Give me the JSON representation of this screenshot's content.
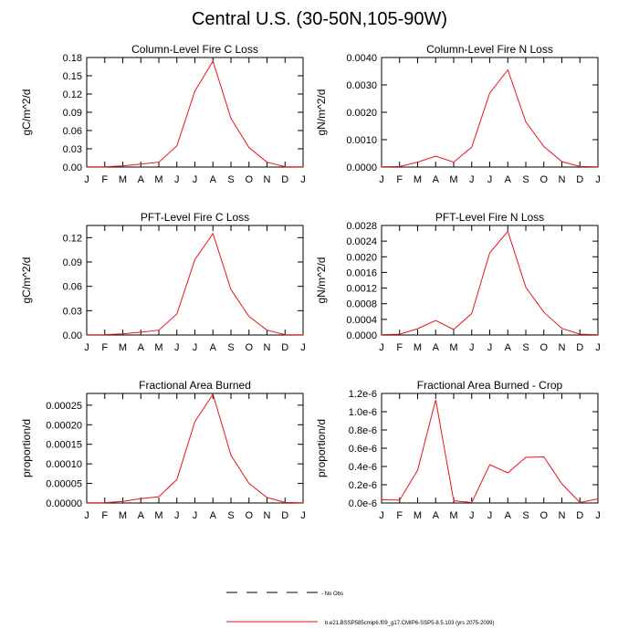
{
  "title": "Central U.S. (30-50N,105-90W)",
  "months": [
    "J",
    "F",
    "M",
    "A",
    "M",
    "J",
    "J",
    "A",
    "S",
    "O",
    "N",
    "D",
    "J"
  ],
  "colors": {
    "model": "#e8141a",
    "axis": "#000000"
  },
  "legend": {
    "obs_label": "- No Obs",
    "model_label": "b.e21.BSSP585cmip6.f09_g17.CMIP6-SSP5-8.5.103 (yrs 2075-2099)"
  },
  "chart_data": [
    {
      "type": "line",
      "title": "Column-Level Fire C Loss",
      "ylabel": "gC/m^2/d",
      "ylim": [
        0,
        0.18
      ],
      "yticks": [
        0,
        0.03,
        0.06,
        0.09,
        0.12,
        0.15,
        0.18
      ],
      "ytick_labels": [
        "0.00",
        "0.03",
        "0.06",
        "0.09",
        "0.12",
        "0.15",
        "0.18"
      ],
      "x": [
        "J",
        "F",
        "M",
        "A",
        "M",
        "J",
        "J",
        "A",
        "S",
        "O",
        "N",
        "D",
        "J"
      ],
      "series": [
        {
          "name": "b.e21.BSSP585cmip6.f09_g17.CMIP6-SSP5-8.5.103 (yrs 2075-2099)",
          "values": [
            0.0004,
            0.0005,
            0.002,
            0.005,
            0.008,
            0.035,
            0.125,
            0.174,
            0.08,
            0.032,
            0.008,
            0.0006,
            0.0004
          ]
        }
      ]
    },
    {
      "type": "line",
      "title": "Column-Level Fire N Loss",
      "ylabel": "gN/m^2/d",
      "ylim": [
        0,
        0.004
      ],
      "yticks": [
        0,
        0.001,
        0.002,
        0.003,
        0.004
      ],
      "ytick_labels": [
        "0.0000",
        "0.0010",
        "0.0020",
        "0.0030",
        "0.0040"
      ],
      "x": [
        "J",
        "F",
        "M",
        "A",
        "M",
        "J",
        "J",
        "A",
        "S",
        "O",
        "N",
        "D",
        "J"
      ],
      "series": [
        {
          "name": "b.e21.BSSP585cmip6.f09_g17.CMIP6-SSP5-8.5.103 (yrs 2075-2099)",
          "values": [
            1e-05,
            2e-05,
            0.00018,
            0.0004,
            0.00018,
            0.00073,
            0.0027,
            0.00355,
            0.00165,
            0.00075,
            0.0002,
            2e-05,
            1e-05
          ]
        }
      ]
    },
    {
      "type": "line",
      "title": "PFT-Level Fire C Loss",
      "ylabel": "gC/m^2/d",
      "ylim": [
        0,
        0.135
      ],
      "yticks": [
        0,
        0.03,
        0.06,
        0.09,
        0.12
      ],
      "ytick_labels": [
        "0.00",
        "0.03",
        "0.06",
        "0.09",
        "0.12"
      ],
      "x": [
        "J",
        "F",
        "M",
        "A",
        "M",
        "J",
        "J",
        "A",
        "S",
        "O",
        "N",
        "D",
        "J"
      ],
      "series": [
        {
          "name": "b.e21.BSSP585cmip6.f09_g17.CMIP6-SSP5-8.5.103 (yrs 2075-2099)",
          "values": [
            0.0003,
            0.0004,
            0.0015,
            0.0035,
            0.006,
            0.026,
            0.093,
            0.125,
            0.056,
            0.023,
            0.006,
            0.0005,
            0.0003
          ]
        }
      ]
    },
    {
      "type": "line",
      "title": "PFT-Level Fire N Loss",
      "ylabel": "gN/m^2/d",
      "ylim": [
        0,
        0.0028
      ],
      "yticks": [
        0,
        0.0004,
        0.0008,
        0.0012,
        0.0016,
        0.002,
        0.0024,
        0.0028
      ],
      "ytick_labels": [
        "0.0000",
        "0.0004",
        "0.0008",
        "0.0012",
        "0.0016",
        "0.0020",
        "0.0024",
        "0.0028"
      ],
      "x": [
        "J",
        "F",
        "M",
        "A",
        "M",
        "J",
        "J",
        "A",
        "S",
        "O",
        "N",
        "D",
        "J"
      ],
      "series": [
        {
          "name": "b.e21.BSSP585cmip6.f09_g17.CMIP6-SSP5-8.5.103 (yrs 2075-2099)",
          "values": [
            1e-05,
            2e-05,
            0.00016,
            0.00037,
            0.00014,
            0.00055,
            0.0021,
            0.00265,
            0.00122,
            0.00058,
            0.00017,
            2e-05,
            1e-05
          ]
        }
      ]
    },
    {
      "type": "line",
      "title": "Fractional Area Burned",
      "ylabel": "proportion/d",
      "ylim": [
        0,
        0.00028
      ],
      "yticks": [
        0,
        5e-05,
        0.0001,
        0.00015,
        0.0002,
        0.00025
      ],
      "ytick_labels": [
        "0.00000",
        "0.00005",
        "0.00010",
        "0.00015",
        "0.00020",
        "0.00025"
      ],
      "x": [
        "J",
        "F",
        "M",
        "A",
        "M",
        "J",
        "J",
        "A",
        "S",
        "O",
        "N",
        "D",
        "J"
      ],
      "series": [
        {
          "name": "b.e21.BSSP585cmip6.f09_g17.CMIP6-SSP5-8.5.103 (yrs 2075-2099)",
          "values": [
            5e-07,
            1e-06,
            4e-06,
            1.1e-05,
            1.6e-05,
            6e-05,
            0.000208,
            0.000278,
            0.000122,
            5e-05,
            1.4e-05,
            1.5e-06,
            5e-07
          ]
        }
      ]
    },
    {
      "type": "line",
      "title": "Fractional Area Burned - Crop",
      "ylabel": "proportion/d",
      "ylim": [
        0,
        1.2e-06
      ],
      "yticks": [
        0,
        2e-07,
        4e-07,
        6e-07,
        8e-07,
        1e-06,
        1.2e-06
      ],
      "ytick_labels": [
        "0.0e-6",
        "0.2e-6",
        "0.4e-6",
        "0.6e-6",
        "0.8e-6",
        "1.0e-6",
        "1.2e-6"
      ],
      "x": [
        "J",
        "F",
        "M",
        "A",
        "M",
        "J",
        "J",
        "A",
        "S",
        "O",
        "N",
        "D",
        "J"
      ],
      "series": [
        {
          "name": "b.e21.BSSP585cmip6.f09_g17.CMIP6-SSP5-8.5.103 (yrs 2075-2099)",
          "values": [
            3.5e-08,
            3.2e-08,
            3.6e-07,
            1.13e-06,
            2.5e-08,
            5e-09,
            4.2e-07,
            3.3e-07,
            5e-07,
            5.05e-07,
            2.1e-07,
            5e-09,
            4.5e-08
          ]
        }
      ]
    }
  ]
}
